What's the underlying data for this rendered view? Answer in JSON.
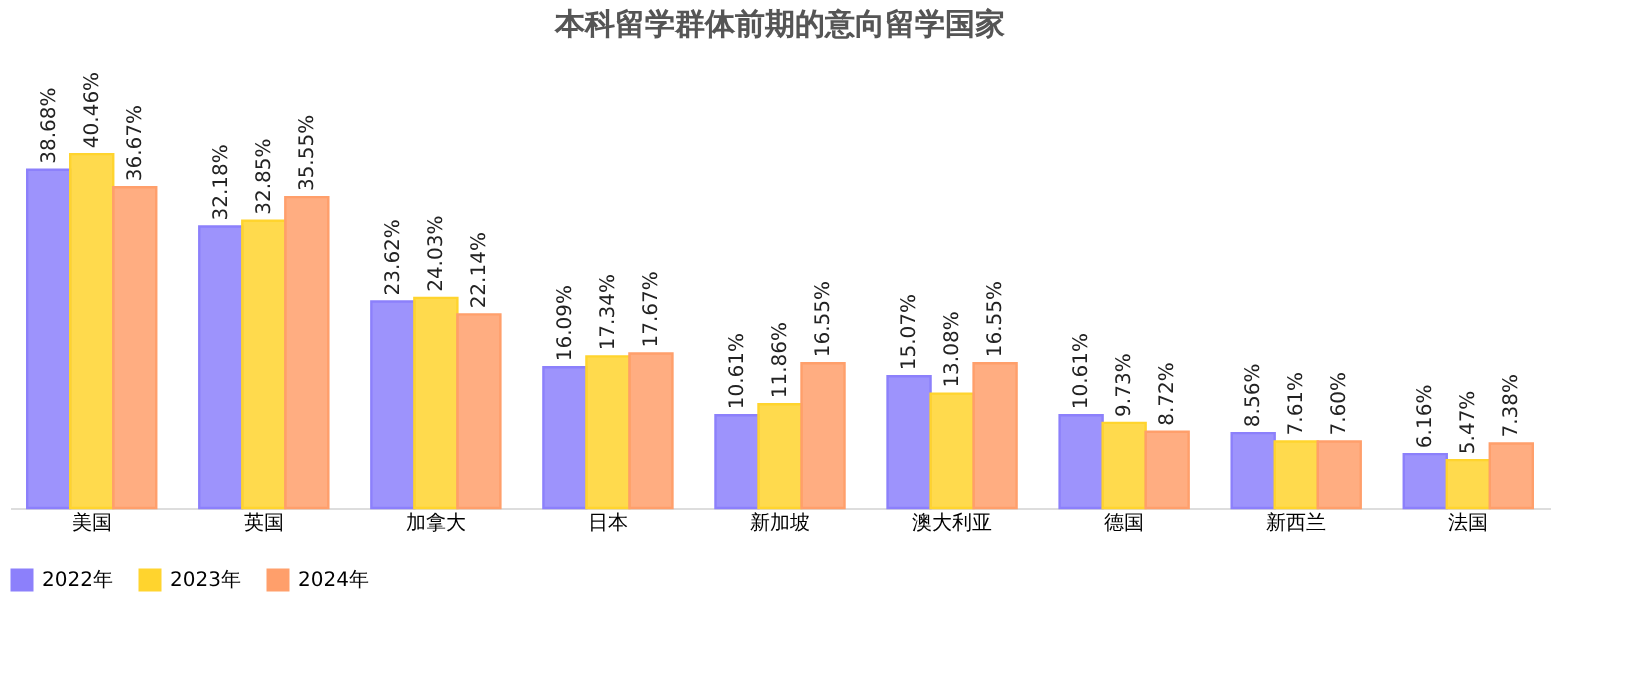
{
  "chart_data": {
    "type": "bar",
    "title": "本科留学群体前期的意向留学国家",
    "categories": [
      "美国",
      "英国",
      "加拿大",
      "日本",
      "新加坡",
      "澳大利亚",
      "德国",
      "新西兰",
      "法国"
    ],
    "series": [
      {
        "name": "2022年",
        "color": "#8c80fb",
        "values": [
          38.68,
          32.18,
          23.62,
          16.09,
          10.61,
          15.07,
          10.61,
          8.56,
          6.16
        ],
        "value_labels": [
          "38.68%",
          "32.18%",
          "23.62%",
          "16.09%",
          "10.61%",
          "15.07%",
          "10.61%",
          "8.56%",
          "6.16%"
        ]
      },
      {
        "name": "2023年",
        "color": "#ffd42e",
        "values": [
          40.46,
          32.85,
          24.03,
          17.34,
          11.86,
          13.08,
          9.73,
          7.61,
          5.47
        ],
        "value_labels": [
          "40.46%",
          "32.85%",
          "24.03%",
          "17.34%",
          "11.86%",
          "13.08%",
          "9.73%",
          "7.61%",
          "5.47%"
        ]
      },
      {
        "name": "2024年",
        "color": "#ff9f6b",
        "values": [
          36.67,
          35.55,
          22.14,
          17.67,
          16.55,
          16.55,
          8.72,
          7.6,
          7.38
        ],
        "value_labels": [
          "36.67%",
          "35.55%",
          "22.14%",
          "17.67%",
          "16.55%",
          "16.55%",
          "8.72%",
          "7.60%",
          "7.38%"
        ]
      }
    ],
    "legend": "bottom",
    "tick_labels": "x"
  }
}
